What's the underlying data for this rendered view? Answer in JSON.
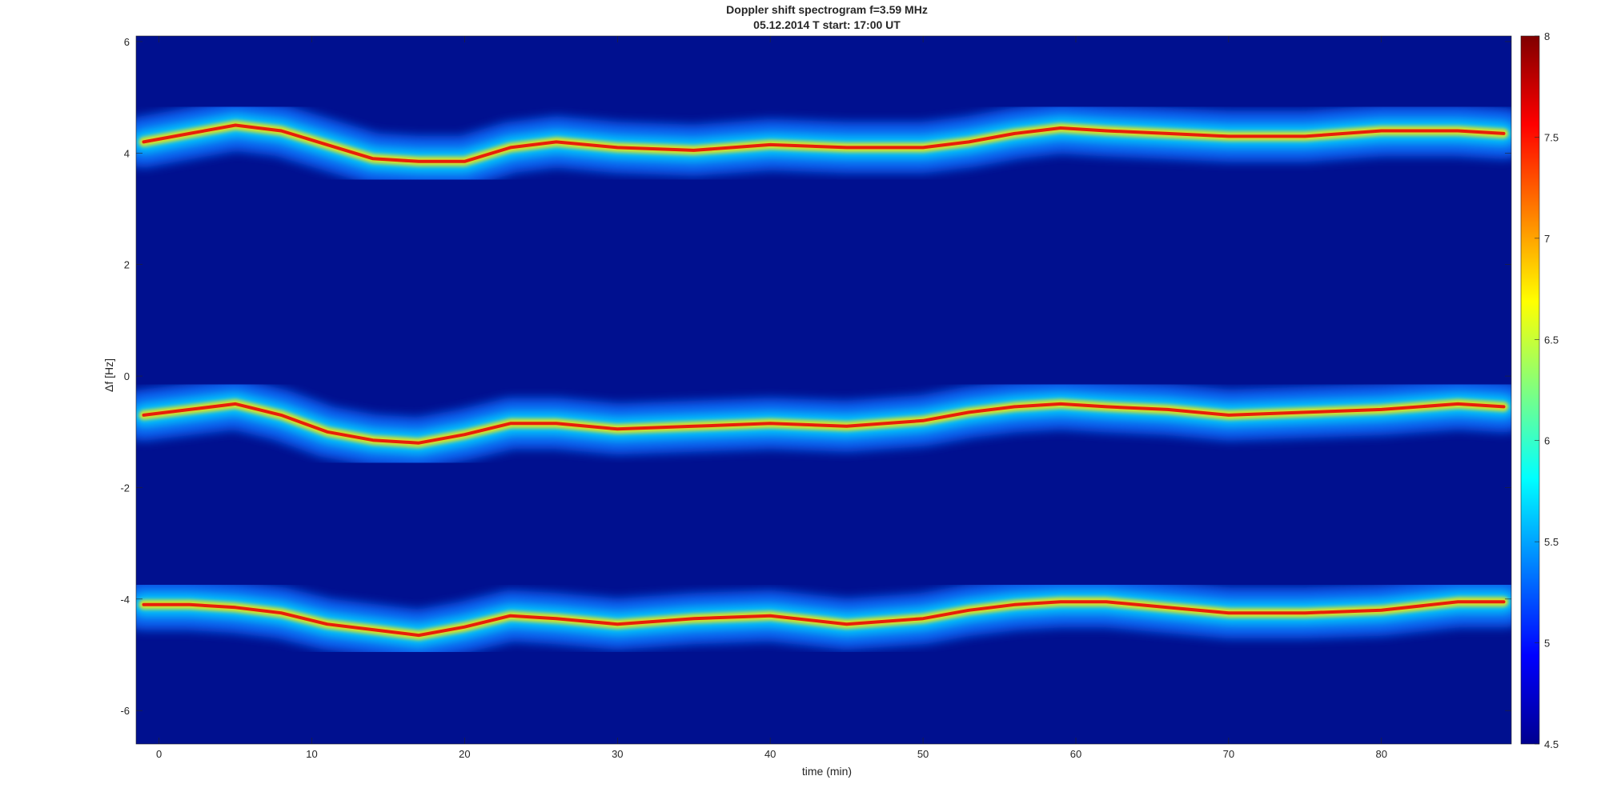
{
  "chart_data": {
    "type": "heatmap",
    "title": "Doppler shift spectrogram f=3.59 MHz",
    "subtitle": "05.12.2014   T start: 17:00 UT",
    "xlabel": "time (min)",
    "ylabel": "Δf [Hz]",
    "xlim": [
      -1.5,
      88.5
    ],
    "ylim": [
      -6.6,
      6.1
    ],
    "x_ticks": [
      0,
      10,
      20,
      30,
      40,
      50,
      60,
      70,
      80
    ],
    "y_ticks": [
      6,
      4,
      2,
      0,
      -2,
      -4,
      -6
    ],
    "colorbar": {
      "colormap": "jet",
      "range": [
        4.5,
        8
      ],
      "ticks": [
        8,
        7.5,
        7,
        6.5,
        6,
        5.5,
        5,
        4.5
      ]
    },
    "series": [
      {
        "x": [
          -1,
          2,
          5,
          8,
          11,
          14,
          17,
          20,
          23,
          26,
          30,
          35,
          40,
          45,
          50,
          53,
          56,
          59,
          62,
          66,
          70,
          75,
          80,
          85,
          88
        ],
        "y": [
          4.2,
          4.35,
          4.5,
          4.4,
          4.15,
          3.9,
          3.85,
          3.85,
          4.1,
          4.2,
          4.1,
          4.05,
          4.15,
          4.1,
          4.1,
          4.2,
          4.35,
          4.45,
          4.4,
          4.35,
          4.3,
          4.3,
          4.4,
          4.4,
          4.35
        ]
      },
      {
        "x": [
          -1,
          2,
          5,
          8,
          11,
          14,
          17,
          20,
          23,
          26,
          30,
          35,
          40,
          45,
          50,
          53,
          56,
          59,
          62,
          66,
          70,
          75,
          80,
          85,
          88
        ],
        "y": [
          -0.7,
          -0.6,
          -0.5,
          -0.7,
          -1.0,
          -1.15,
          -1.2,
          -1.05,
          -0.85,
          -0.85,
          -0.95,
          -0.9,
          -0.85,
          -0.9,
          -0.8,
          -0.65,
          -0.55,
          -0.5,
          -0.55,
          -0.6,
          -0.7,
          -0.65,
          -0.6,
          -0.5,
          -0.55
        ]
      },
      {
        "x": [
          -1,
          2,
          5,
          8,
          11,
          14,
          17,
          20,
          23,
          26,
          30,
          35,
          40,
          45,
          50,
          53,
          56,
          59,
          62,
          66,
          70,
          75,
          80,
          85,
          88
        ],
        "y": [
          -4.1,
          -4.1,
          -4.15,
          -4.25,
          -4.45,
          -4.55,
          -4.65,
          -4.5,
          -4.3,
          -4.35,
          -4.45,
          -4.35,
          -4.3,
          -4.45,
          -4.35,
          -4.2,
          -4.1,
          -4.05,
          -4.05,
          -4.15,
          -4.25,
          -4.25,
          -4.2,
          -4.05,
          -4.05
        ]
      }
    ]
  }
}
